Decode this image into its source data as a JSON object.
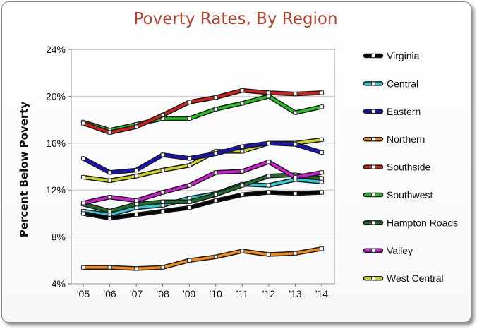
{
  "chart_data": {
    "type": "line",
    "title": "Poverty Rates, By Region",
    "xlabel": "",
    "ylabel": "Percent Below Poverty",
    "categories": [
      "'05",
      "'06",
      "'07",
      "'08",
      "'09",
      "'10",
      "'11",
      "'12",
      "'13",
      "'14"
    ],
    "ylim": [
      4,
      24
    ],
    "yticks": [
      4,
      8,
      12,
      16,
      20,
      24
    ],
    "ytick_labels": [
      "4%",
      "8%",
      "12%",
      "16%",
      "20%",
      "24%"
    ],
    "grid": "horizontal",
    "legend_position": "right",
    "series": [
      {
        "name": "Virginia",
        "color": "#000000",
        "values": [
          10.0,
          9.6,
          9.9,
          10.2,
          10.5,
          11.1,
          11.6,
          11.8,
          11.7,
          11.8
        ]
      },
      {
        "name": "Central",
        "color": "#2ec9d2",
        "values": [
          10.2,
          9.9,
          10.5,
          10.7,
          11.3,
          11.7,
          12.5,
          12.4,
          12.9,
          12.7
        ]
      },
      {
        "name": "Eastern",
        "color": "#1616c4",
        "values": [
          14.7,
          13.5,
          13.7,
          15.0,
          14.7,
          15.1,
          15.7,
          16.0,
          15.9,
          15.2
        ]
      },
      {
        "name": "Northern",
        "color": "#f48a16",
        "values": [
          5.4,
          5.4,
          5.3,
          5.4,
          6.0,
          6.3,
          6.8,
          6.5,
          6.6,
          7.0
        ]
      },
      {
        "name": "Southside",
        "color": "#d0201a",
        "values": [
          17.7,
          16.9,
          17.4,
          18.4,
          19.5,
          19.9,
          20.5,
          20.3,
          20.2,
          20.3
        ]
      },
      {
        "name": "Southwest",
        "color": "#22c321",
        "values": [
          17.8,
          17.1,
          17.6,
          18.1,
          18.1,
          18.9,
          19.4,
          20.0,
          18.6,
          19.1
        ]
      },
      {
        "name": "Hampton Roads",
        "color": "#1f6b29",
        "values": [
          10.8,
          10.2,
          10.8,
          11.0,
          11.0,
          11.6,
          12.4,
          13.2,
          13.3,
          13.0
        ]
      },
      {
        "name": "Valley",
        "color": "#d41cd6",
        "values": [
          10.9,
          11.4,
          11.1,
          11.8,
          12.4,
          13.5,
          13.6,
          14.4,
          13.1,
          13.5
        ]
      },
      {
        "name": "West Central",
        "color": "#d1d21f",
        "values": [
          13.1,
          12.8,
          13.2,
          13.7,
          14.1,
          15.3,
          15.3,
          16.0,
          16.0,
          16.3
        ]
      }
    ]
  }
}
